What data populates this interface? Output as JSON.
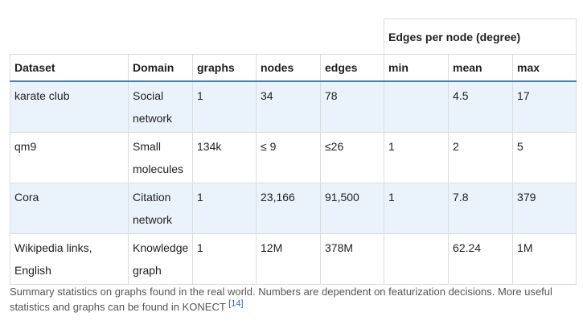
{
  "table": {
    "group_header": "Edges per node (degree)",
    "columns": [
      "Dataset",
      "Domain",
      "graphs",
      "nodes",
      "edges",
      "min",
      "mean",
      "max"
    ],
    "rows": [
      [
        "karate club",
        "Social network",
        "1",
        "34",
        "78",
        "",
        "4.5",
        "17"
      ],
      [
        "qm9",
        "Small molecules",
        "134k",
        "≤ 9",
        "≤26",
        "1",
        "2",
        "5"
      ],
      [
        "Cora",
        "Citation network",
        "1",
        "23,166",
        "91,500",
        "1",
        "7.8",
        "379"
      ],
      [
        "Wikipedia links, English",
        "Knowledge graph",
        "1",
        "12M",
        "378M",
        "",
        "62.24",
        "1M"
      ]
    ]
  },
  "caption": {
    "text": "Summary statistics on graphs found in the real world. Numbers are dependent on featurization decisions. More useful statistics and graphs can be found in KONECT",
    "citation": "[14]"
  }
}
